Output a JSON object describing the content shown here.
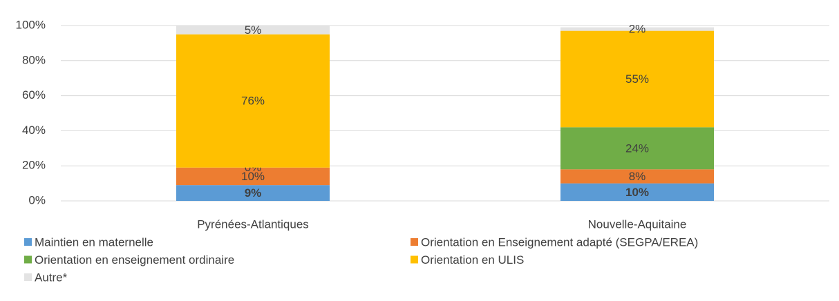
{
  "chart_data": {
    "type": "stacked_bar",
    "categories": [
      "Pyrénées-Atlantiques",
      "Nouvelle-Aquitaine"
    ],
    "series": [
      {
        "name": "Maintien en maternelle",
        "color": "#5b9bd5",
        "values": [
          9,
          10
        ],
        "value_labels": [
          "9%",
          "10%"
        ],
        "bold": true
      },
      {
        "name": "Orientation en Enseignement adapté (SEGPA/EREA)",
        "color": "#ed7d31",
        "values": [
          10,
          8
        ],
        "value_labels": [
          "10%",
          "8%"
        ]
      },
      {
        "name": "Orientation en enseignement ordinaire",
        "color": "#70ad47",
        "values": [
          0,
          24
        ],
        "value_labels": [
          "0%",
          "24%"
        ]
      },
      {
        "name": "Orientation en ULIS",
        "color": "#ffc000",
        "values": [
          76,
          55
        ],
        "value_labels": [
          "76%",
          "55%"
        ]
      },
      {
        "name": "Autre*",
        "color": "#e3e3e3",
        "values": [
          5,
          2
        ],
        "value_labels": [
          "5%",
          "2%"
        ]
      }
    ],
    "ylim": [
      0,
      100
    ],
    "yticks": [
      {
        "value": 0,
        "label": "0%"
      },
      {
        "value": 20,
        "label": "20%"
      },
      {
        "value": 40,
        "label": "40%"
      },
      {
        "value": 60,
        "label": "60%"
      },
      {
        "value": 80,
        "label": "80%"
      },
      {
        "value": 100,
        "label": "100%"
      }
    ],
    "grid": true
  }
}
